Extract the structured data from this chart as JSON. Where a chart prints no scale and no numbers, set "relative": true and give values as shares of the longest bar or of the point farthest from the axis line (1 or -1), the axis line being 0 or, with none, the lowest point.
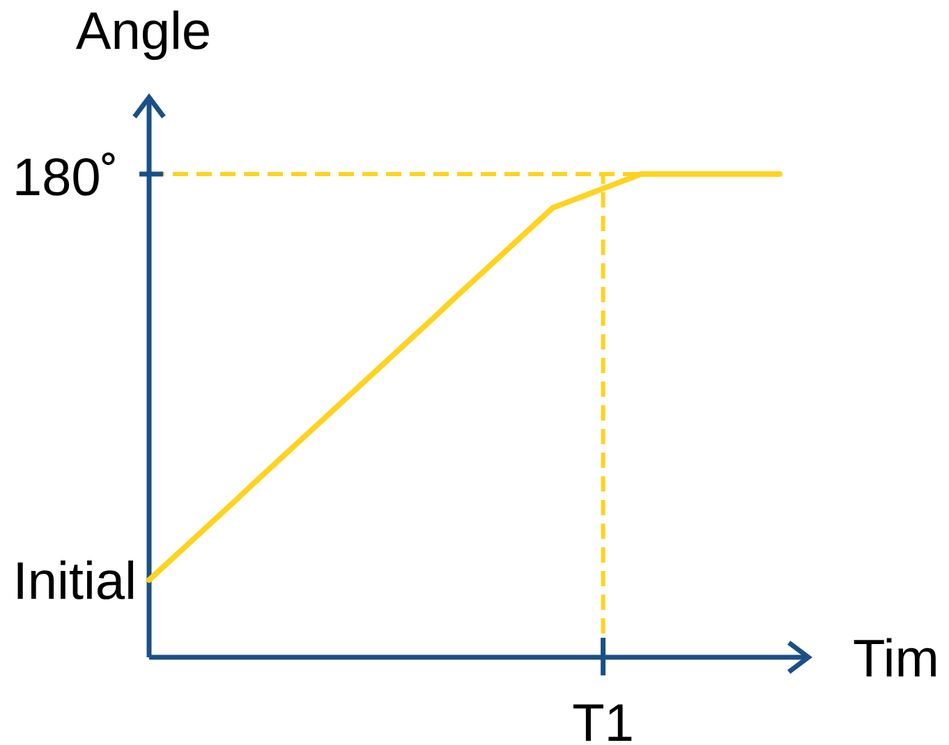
{
  "chart_data": {
    "type": "line",
    "xlabel": "Tim",
    "ylabel": "Angle",
    "relative": true,
    "categories": [
      null,
      null,
      null,
      null,
      null,
      null,
      null,
      null,
      null,
      null,
      null,
      null,
      null,
      null,
      null,
      null,
      null,
      null,
      null,
      null,
      null,
      null,
      null,
      null,
      null,
      null,
      null,
      null,
      null,
      null,
      null,
      null,
      null,
      null,
      null,
      null,
      null,
      null,
      null,
      null,
      null,
      null,
      null,
      null,
      null,
      null,
      null,
      null,
      null,
      null,
      null
    ],
    "series": [
      {
        "color": "#ffd320",
        "values": [
          0.16,
          0.184,
          0.208,
          0.232,
          0.256,
          0.28,
          0.304,
          0.328,
          0.353,
          0.377,
          0.401,
          0.425,
          0.449,
          0.473,
          0.497,
          0.521,
          0.545,
          0.569,
          0.593,
          0.617,
          0.641,
          0.665,
          0.689,
          0.713,
          0.738,
          0.762,
          0.786,
          0.81,
          0.834,
          0.858,
          0.882,
          0.906,
          0.93,
          0.94,
          0.95,
          0.96,
          0.97,
          0.98,
          0.99,
          1,
          1,
          1,
          1,
          1,
          1,
          1,
          1,
          1,
          1,
          1,
          1
        ]
      }
    ],
    "ref_lines": [
      {
        "axis": "y",
        "value": 1,
        "label": "180˚",
        "color": "#ffd320",
        "line_style": "dashed"
      }
    ],
    "annotations": [
      "Initial",
      "T1"
    ]
  }
}
